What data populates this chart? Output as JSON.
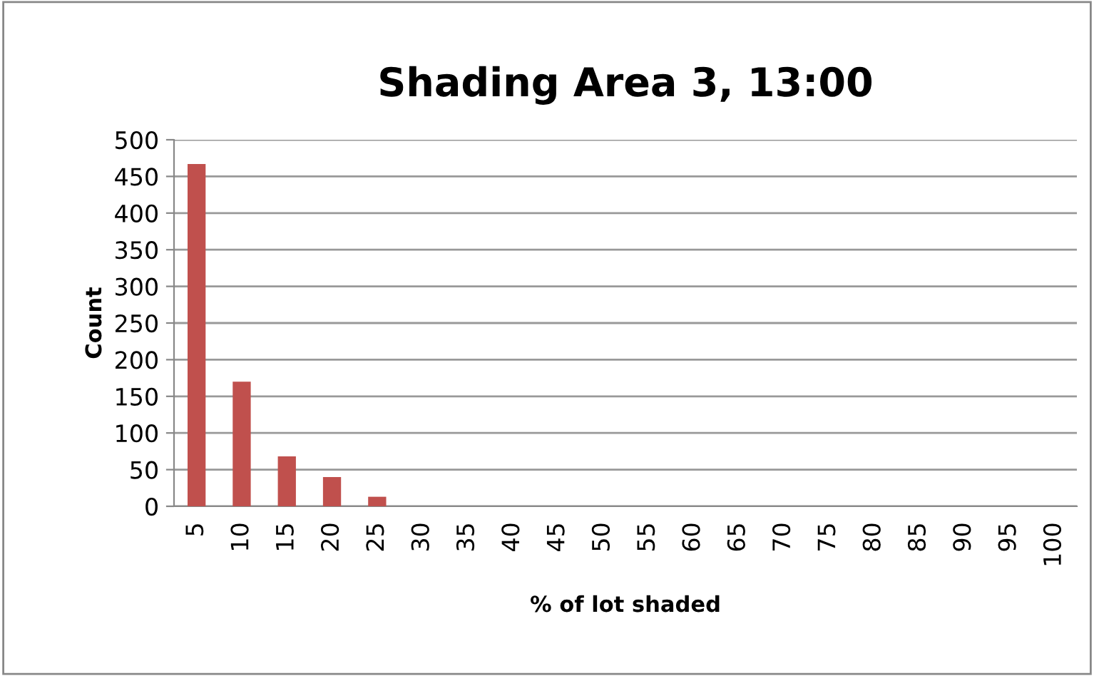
{
  "chart_data": {
    "type": "bar",
    "title": "Shading Area 3, 13:00",
    "xlabel": "% of lot shaded",
    "ylabel": "Count",
    "categories": [
      "5",
      "10",
      "15",
      "20",
      "25",
      "30",
      "35",
      "40",
      "45",
      "50",
      "55",
      "60",
      "65",
      "70",
      "75",
      "80",
      "85",
      "90",
      "95",
      "100"
    ],
    "values": [
      467,
      170,
      68,
      40,
      13,
      0,
      0,
      0,
      0,
      0,
      0,
      0,
      0,
      0,
      0,
      0,
      0,
      0,
      0,
      0
    ],
    "color": "#c0504d",
    "ylim": [
      0,
      500
    ],
    "yticks": [
      0,
      50,
      100,
      150,
      200,
      250,
      300,
      350,
      400,
      450,
      500
    ],
    "grid": "y",
    "legend": false
  }
}
